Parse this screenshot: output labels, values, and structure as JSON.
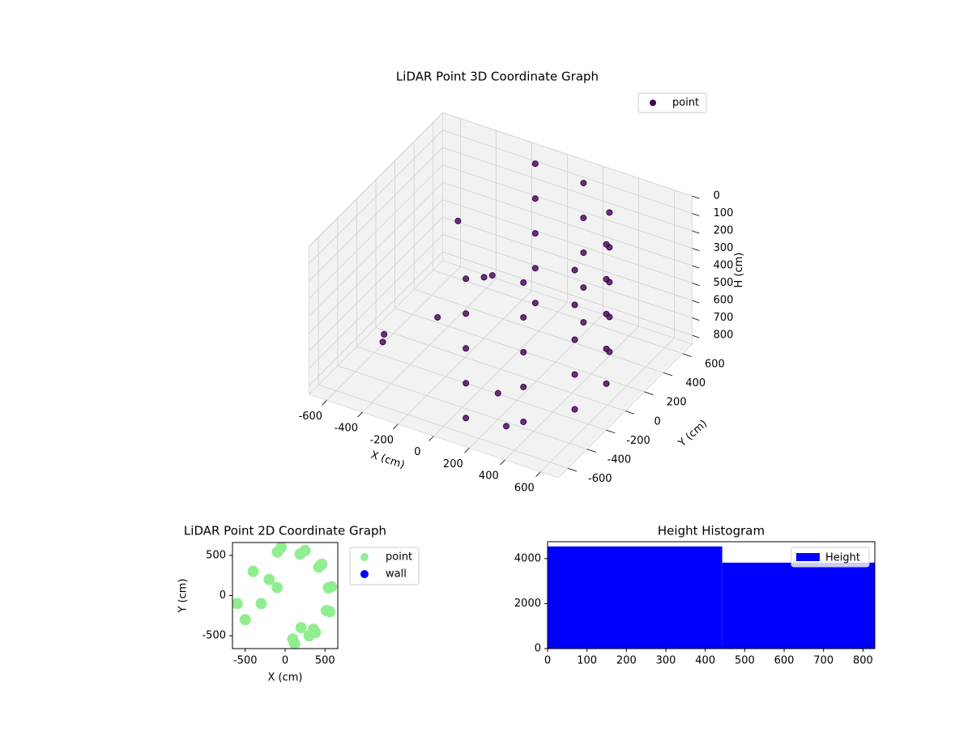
{
  "chart_data": [
    {
      "type": "scatter3d",
      "title": "LiDAR Point 3D Coordinate Graph",
      "xlabel": "X (cm)",
      "ylabel": "Y (cm)",
      "zlabel": "H (cm)",
      "xlim": [
        -700,
        700
      ],
      "ylim": [
        -700,
        700
      ],
      "zlim": [
        0,
        850
      ],
      "z_inverted": true,
      "xticks": [
        -600,
        -400,
        -200,
        0,
        200,
        400,
        600
      ],
      "yticks": [
        -600,
        -400,
        -200,
        0,
        200,
        400,
        600
      ],
      "zticks": [
        0,
        100,
        200,
        300,
        400,
        500,
        600,
        700,
        800
      ],
      "grid": true,
      "legend": "upper right",
      "series": [
        {
          "name": "point",
          "color": "#440154",
          "x": [
            -96,
            188,
            421,
            542,
            517,
            354,
            96,
            -96,
            188,
            421,
            542,
            517,
            354,
            96,
            -96,
            188,
            421,
            542,
            517,
            354,
            96,
            -96,
            188,
            421,
            542,
            517,
            354,
            96,
            -96,
            188,
            421,
            542,
            517,
            354,
            96,
            -500,
            -300,
            -200,
            -400,
            -100,
            200,
            300,
            -600
          ],
          "y": [
            542,
            517,
            354,
            96,
            -188,
            -421,
            -542,
            542,
            517,
            354,
            96,
            -188,
            -421,
            -542,
            542,
            517,
            354,
            96,
            -188,
            -421,
            -542,
            542,
            517,
            354,
            96,
            -188,
            -421,
            -542,
            542,
            517,
            354,
            96,
            -188,
            -421,
            -542,
            -300,
            -100,
            200,
            300,
            100,
            -400,
            -500,
            -100
          ],
          "z": [
            0,
            0,
            0,
            0,
            0,
            0,
            0,
            200,
            200,
            200,
            200,
            200,
            200,
            200,
            400,
            400,
            400,
            400,
            400,
            400,
            400,
            600,
            600,
            600,
            600,
            600,
            600,
            600,
            800,
            800,
            800,
            800,
            800,
            800,
            800,
            700,
            600,
            500,
            300,
            400,
            700,
            800,
            800
          ]
        }
      ]
    },
    {
      "type": "scatter",
      "title": "LiDAR Point 2D Coordinate Graph",
      "xlabel": "X (cm)",
      "ylabel": "Y (cm)",
      "xlim": [
        -660,
        660
      ],
      "ylim": [
        -660,
        660
      ],
      "xticks": [
        -500,
        0,
        500
      ],
      "yticks": [
        -500,
        0,
        500
      ],
      "legend": "outside right",
      "series": [
        {
          "name": "point",
          "color": "#90ee90",
          "x": [
            -96,
            188,
            421,
            542,
            517,
            354,
            96,
            -500,
            -300,
            -200,
            -400,
            -100,
            200,
            300,
            -600,
            -50,
            250,
            460,
            580,
            560,
            380,
            120
          ],
          "y": [
            542,
            517,
            354,
            96,
            -188,
            -421,
            -542,
            -300,
            -100,
            200,
            300,
            100,
            -400,
            -500,
            -100,
            600,
            560,
            390,
            110,
            -200,
            -460,
            -600
          ]
        },
        {
          "name": "wall",
          "color": "#0000ff",
          "x": [],
          "y": []
        }
      ]
    },
    {
      "type": "histogram",
      "title": "Height Histogram",
      "bins": [
        0,
        443,
        830
      ],
      "counts": [
        4540,
        3820
      ],
      "xlim": [
        0,
        830
      ],
      "ylim": [
        0,
        4750
      ],
      "xticks": [
        0,
        100,
        200,
        300,
        400,
        500,
        600,
        700,
        800
      ],
      "yticks": [
        0,
        2000,
        4000
      ],
      "legend": "upper right",
      "series_name": "Height",
      "color": "#0000ff"
    }
  ]
}
